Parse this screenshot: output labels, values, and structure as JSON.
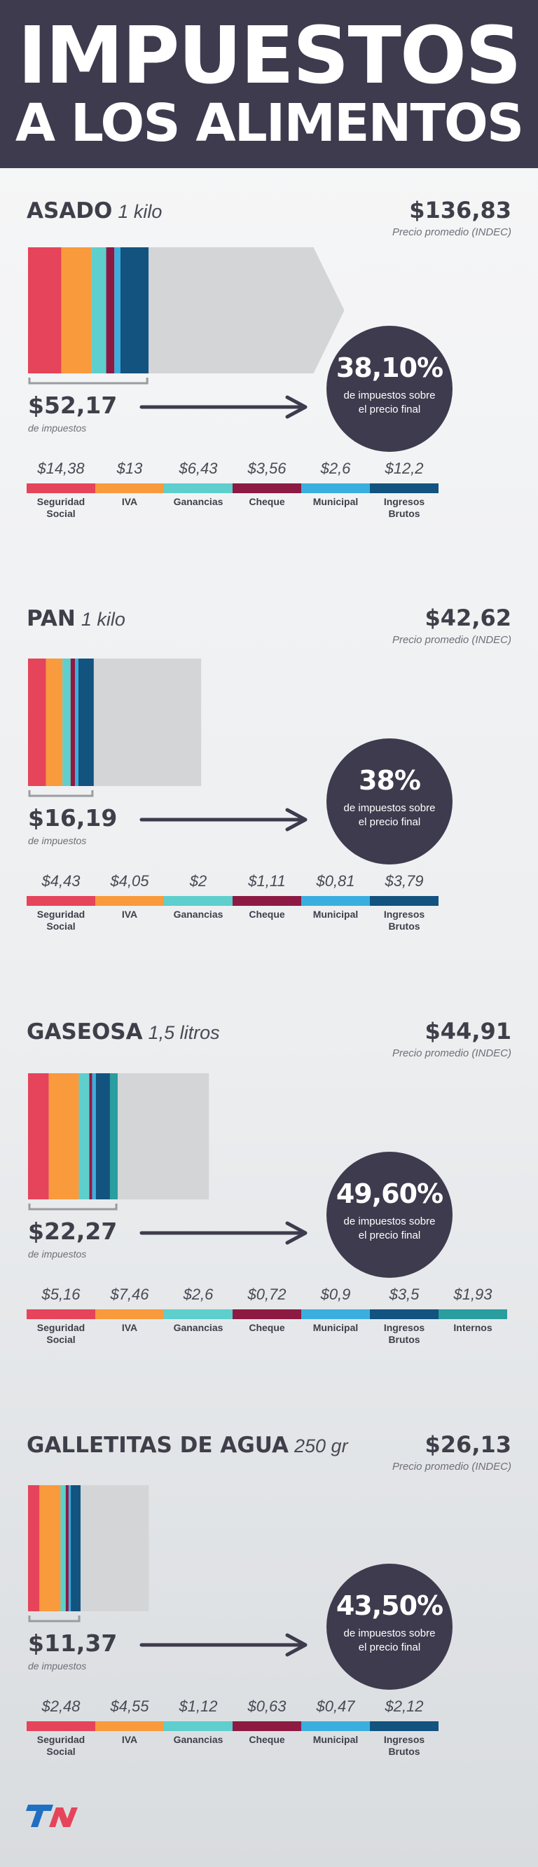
{
  "header": {
    "line1": "IMPUESTOS",
    "line2": "A  LOS ALIMENTOS"
  },
  "colors": {
    "seguridad_social": "#e5445a",
    "iva": "#f99a3c",
    "ganancias": "#5ecfcd",
    "cheque": "#8d1a42",
    "municipal": "#3aafdf",
    "ingresos_brutos": "#12537f",
    "internos": "#2a9d9e",
    "remainder": "#d4d5d6",
    "dark": "#3d3b4d"
  },
  "logo": {
    "name": "TN"
  },
  "chart_data": [
    {
      "type": "bar",
      "product": "ASADO",
      "unit": "1 kilo",
      "price": "$136,83",
      "price_value": 136.83,
      "price_note": "Precio promedio (INDEC)",
      "tax_total": "$52,17",
      "tax_total_value": 52.17,
      "tax_total_note": "de impuestos",
      "pct": "38,10%",
      "pct_value": 38.1,
      "pct_desc": "de impuestos sobre el precio final",
      "categories": [
        {
          "key": "seguridad_social",
          "name": "Seguridad Social",
          "label": "$14,38",
          "value": 14.38
        },
        {
          "key": "iva",
          "name": "IVA",
          "label": "$13",
          "value": 13
        },
        {
          "key": "ganancias",
          "name": "Ganancias",
          "label": "$6,43",
          "value": 6.43
        },
        {
          "key": "cheque",
          "name": "Cheque",
          "label": "$3,56",
          "value": 3.56
        },
        {
          "key": "municipal",
          "name": "Municipal",
          "label": "$2,6",
          "value": 2.6
        },
        {
          "key": "ingresos_brutos",
          "name": "Ingresos Brutos",
          "label": "$12,2",
          "value": 12.2
        }
      ]
    },
    {
      "type": "bar",
      "product": "PAN",
      "unit": "1 kilo",
      "price": "$42,62",
      "price_value": 42.62,
      "price_note": "Precio promedio (INDEC)",
      "tax_total": "$16,19",
      "tax_total_value": 16.19,
      "tax_total_note": "de impuestos",
      "pct": "38%",
      "pct_value": 38,
      "pct_desc": "de impuestos sobre el precio final",
      "categories": [
        {
          "key": "seguridad_social",
          "name": "Seguridad Social",
          "label": "$4,43",
          "value": 4.43
        },
        {
          "key": "iva",
          "name": "IVA",
          "label": "$4,05",
          "value": 4.05
        },
        {
          "key": "ganancias",
          "name": "Ganancias",
          "label": "$2",
          "value": 2
        },
        {
          "key": "cheque",
          "name": "Cheque",
          "label": "$1,11",
          "value": 1.11
        },
        {
          "key": "municipal",
          "name": "Municipal",
          "label": "$0,81",
          "value": 0.81
        },
        {
          "key": "ingresos_brutos",
          "name": "Ingresos Brutos",
          "label": "$3,79",
          "value": 3.79
        }
      ]
    },
    {
      "type": "bar",
      "product": "GASEOSA",
      "unit": "1,5 litros",
      "price": "$44,91",
      "price_value": 44.91,
      "price_note": "Precio promedio (INDEC)",
      "tax_total": "$22,27",
      "tax_total_value": 22.27,
      "tax_total_note": "de impuestos",
      "pct": "49,60%",
      "pct_value": 49.6,
      "pct_desc": "de impuestos sobre el precio final",
      "categories": [
        {
          "key": "seguridad_social",
          "name": "Seguridad Social",
          "label": "$5,16",
          "value": 5.16
        },
        {
          "key": "iva",
          "name": "IVA",
          "label": "$7,46",
          "value": 7.46
        },
        {
          "key": "ganancias",
          "name": "Ganancias",
          "label": "$2,6",
          "value": 2.6
        },
        {
          "key": "cheque",
          "name": "Cheque",
          "label": "$0,72",
          "value": 0.72
        },
        {
          "key": "municipal",
          "name": "Municipal",
          "label": "$0,9",
          "value": 0.9
        },
        {
          "key": "ingresos_brutos",
          "name": "Ingresos Brutos",
          "label": "$3,5",
          "value": 3.5
        },
        {
          "key": "internos",
          "name": "Internos",
          "label": "$1,93",
          "value": 1.93
        }
      ]
    },
    {
      "type": "bar",
      "product": "GALLETITAS DE AGUA",
      "unit": "250 gr",
      "price": "$26,13",
      "price_value": 26.13,
      "price_note": "Precio promedio (INDEC)",
      "tax_total": "$11,37",
      "tax_total_value": 11.37,
      "tax_total_note": "de impuestos",
      "pct": "43,50%",
      "pct_value": 43.5,
      "pct_desc": "de impuestos sobre el precio final",
      "categories": [
        {
          "key": "seguridad_social",
          "name": "Seguridad Social",
          "label": "$2,48",
          "value": 2.48
        },
        {
          "key": "iva",
          "name": "IVA",
          "label": "$4,55",
          "value": 4.55
        },
        {
          "key": "ganancias",
          "name": "Ganancias",
          "label": "$1,12",
          "value": 1.12
        },
        {
          "key": "cheque",
          "name": "Cheque",
          "label": "$0,63",
          "value": 0.63
        },
        {
          "key": "municipal",
          "name": "Municipal",
          "label": "$0,47",
          "value": 0.47
        },
        {
          "key": "ingresos_brutos",
          "name": "Ingresos Brutos",
          "label": "$2,12",
          "value": 2.12
        }
      ]
    }
  ]
}
